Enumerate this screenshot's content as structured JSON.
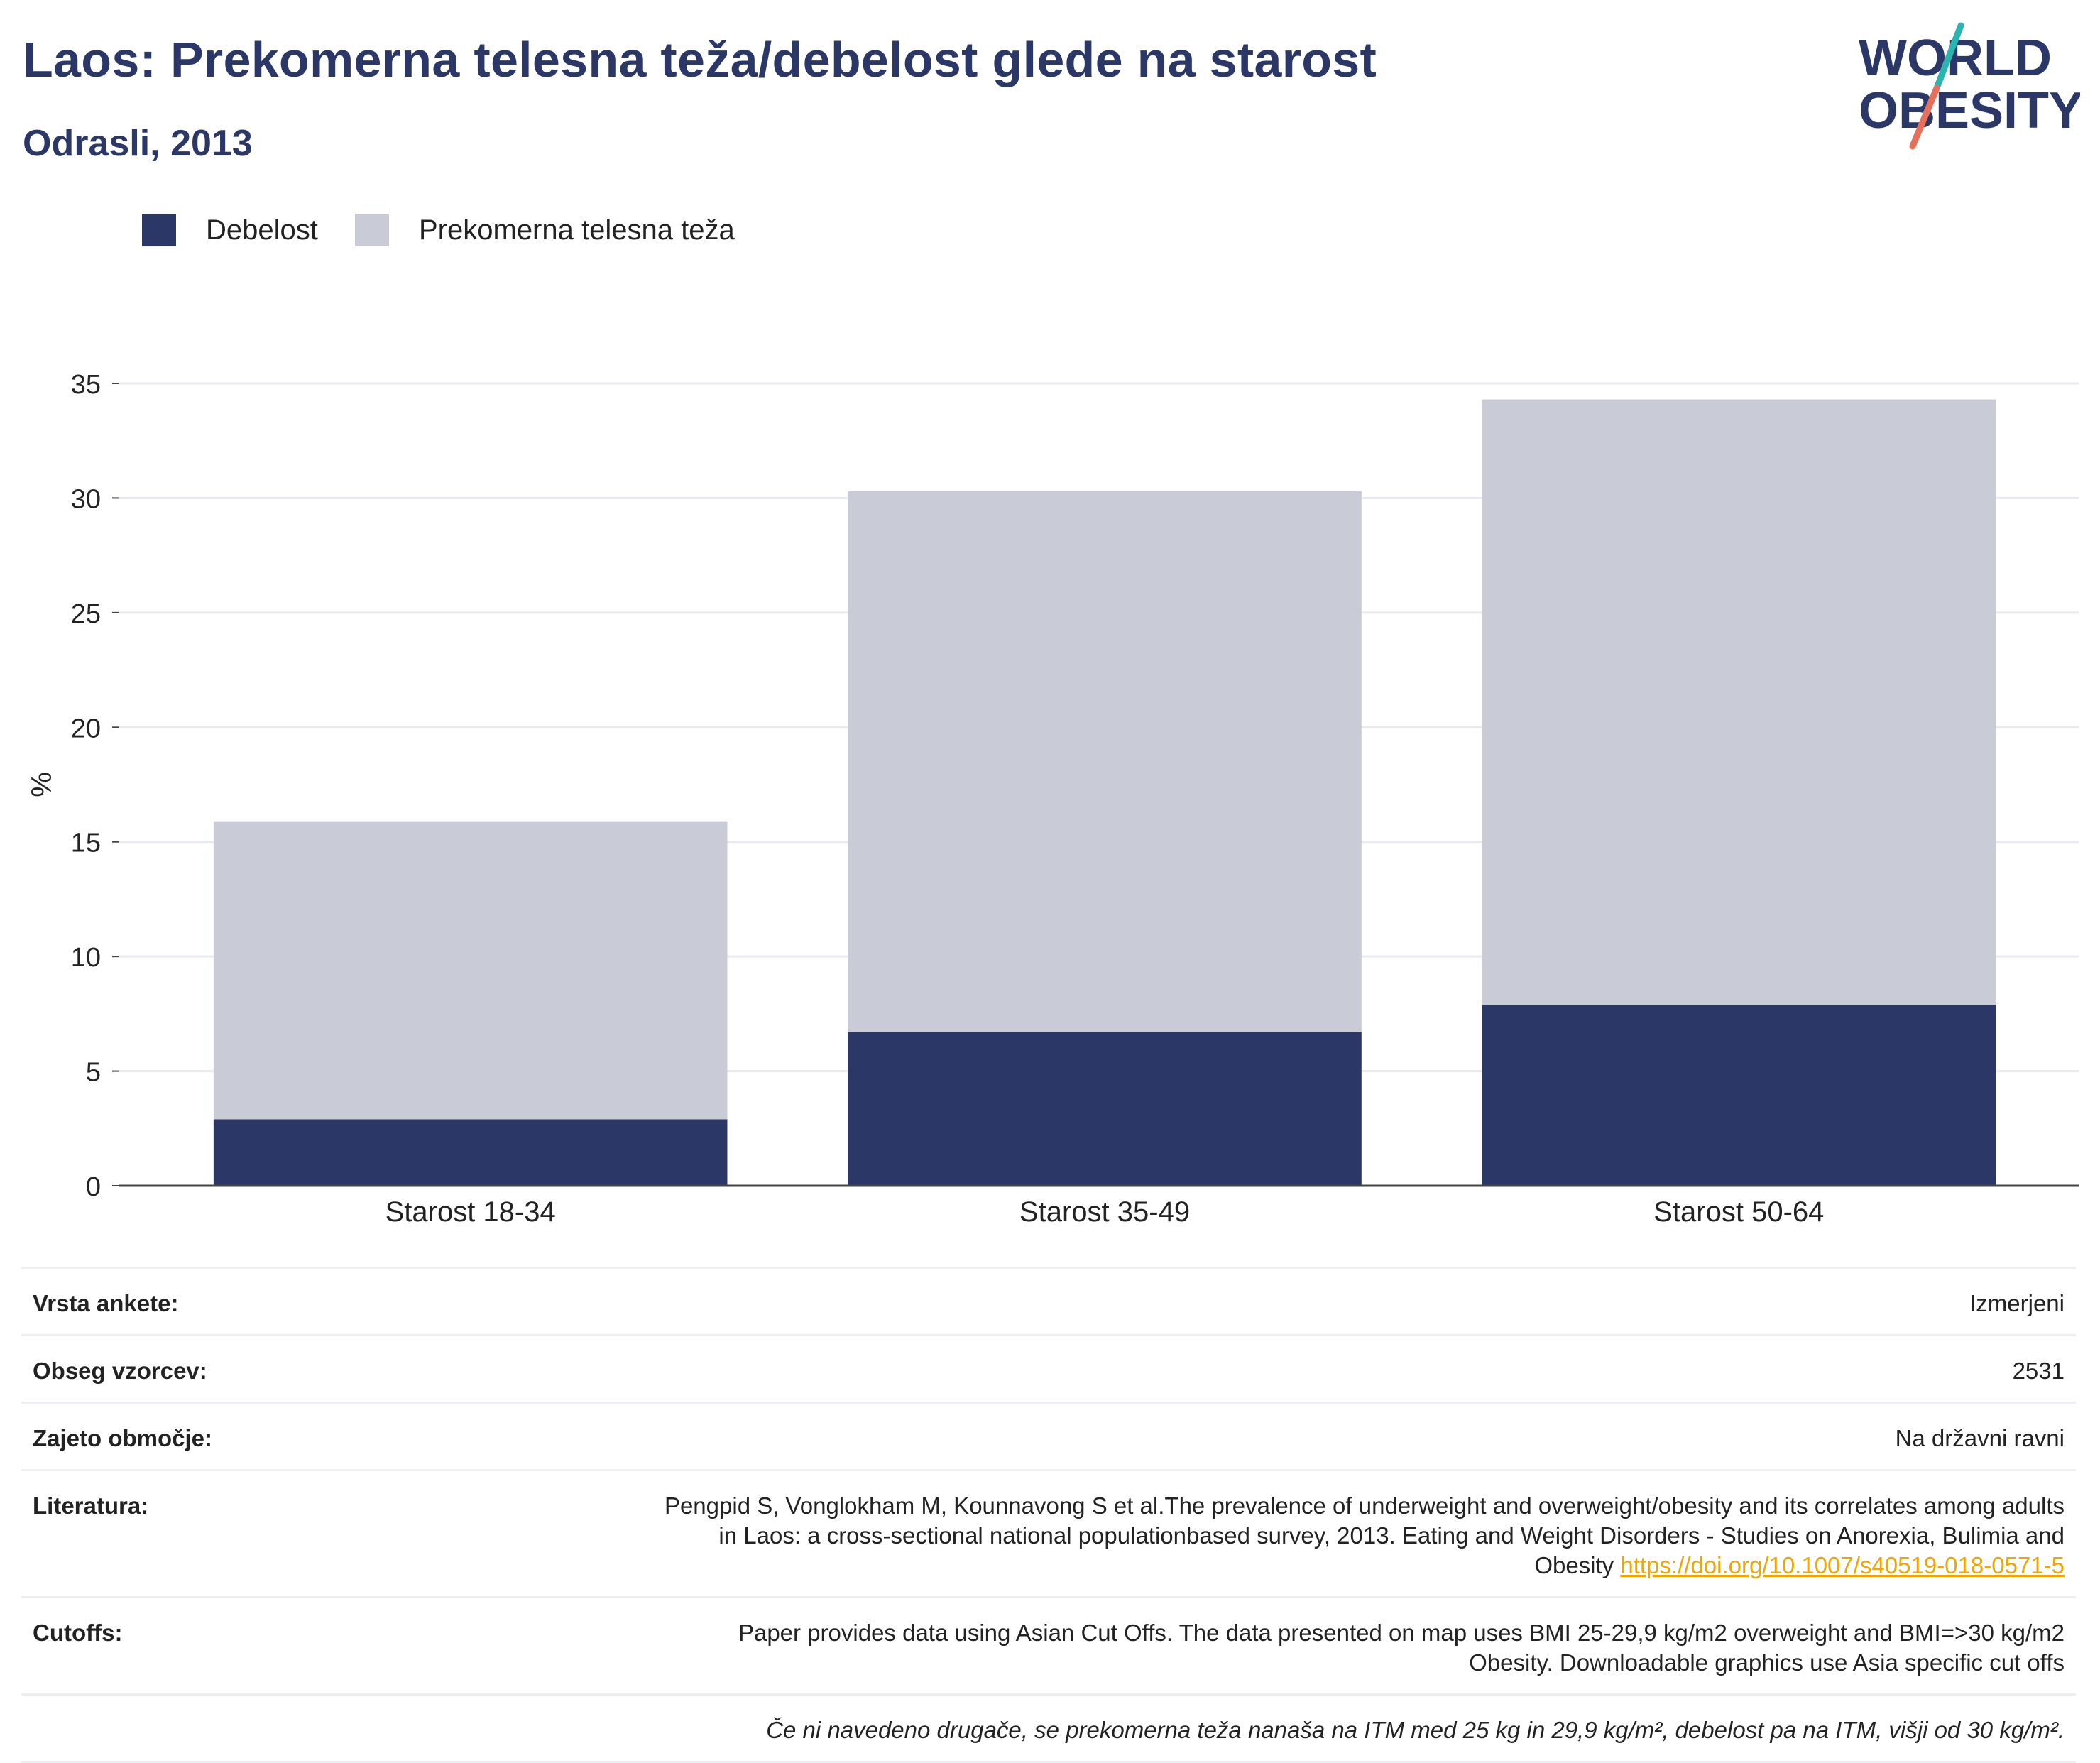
{
  "header": {
    "title": "Laos: Prekomerna telesna teža/debelost glede na starost",
    "subtitle": "Odrasli, 2013"
  },
  "logo": {
    "line1": "WORLD",
    "line2": "OBESITY"
  },
  "colors": {
    "obesity": "#2b3766",
    "overweight": "#c9cbd7",
    "title": "#2b3766",
    "link": "#f0a500",
    "logo_teal": "#2bb5b0",
    "logo_coral": "#e8705a"
  },
  "legend": {
    "items": [
      {
        "label": "Debelost",
        "color": "#2b3766"
      },
      {
        "label": "Prekomerna telesna teža",
        "color": "#c9cbd7"
      }
    ]
  },
  "chart_data": {
    "type": "bar",
    "stacked": true,
    "categories": [
      "Starost 18-34",
      "Starost 35-49",
      "Starost 50-64"
    ],
    "series": [
      {
        "name": "Debelost",
        "values": [
          2.9,
          6.7,
          7.9
        ],
        "color": "#2b3766"
      },
      {
        "name": "Prekomerna telesna teža",
        "values": [
          13.0,
          23.6,
          26.4
        ],
        "color": "#c9cbd7"
      }
    ],
    "ylabel": "%",
    "ylim": [
      0,
      35
    ],
    "yticks": [
      0,
      5,
      10,
      15,
      20,
      25,
      30,
      35
    ],
    "grid": true,
    "legend_position": "top-left"
  },
  "info": {
    "survey_type": {
      "label": "Vrsta ankete:",
      "value": "Izmerjeni"
    },
    "sample_size": {
      "label": "Obseg vzorcev:",
      "value": "2531"
    },
    "coverage": {
      "label": "Zajeto območje:",
      "value": "Na državni ravni"
    },
    "literature": {
      "label": "Literatura:",
      "text_line1": "Pengpid S, Vonglokham M, Kounnavong S et al.The prevalence of underweight and overweight/obesity and its correlates among adults",
      "text_line2": "in Laos: a cross-sectional national populationbased survey, 2013. Eating and Weight Disorders - Studies on Anorexia, Bulimia and",
      "text_line3": "Obesity",
      "link": "https://doi.org/10.1007/s40519-018-0571-5"
    },
    "cutoffs": {
      "label": "Cutoffs:",
      "line1": "Paper provides data using Asian Cut Offs. The data presented on map uses BMI 25-29,9 kg/m2 overweight and BMI=>30 kg/m2",
      "line2": "Obesity. Downloadable graphics use Asia specific cut offs"
    },
    "note": "Če ni navedeno drugače, se prekomerna teža nanaša na ITM med 25 kg in 29,9 kg/m², debelost pa na ITM, višji od 30 kg/m²."
  }
}
